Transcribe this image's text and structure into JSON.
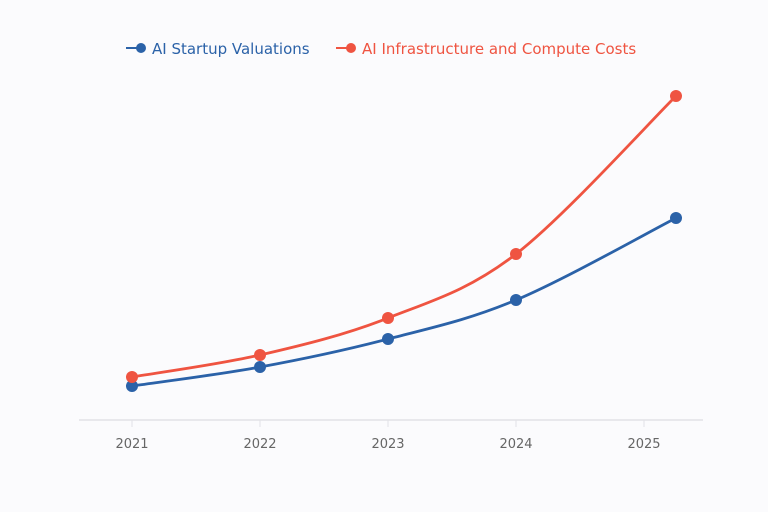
{
  "chart_data": {
    "type": "line",
    "title": "",
    "xlabel": "",
    "ylabel": "",
    "x_ticks": [
      "2021",
      "2022",
      "2023",
      "2024",
      "2025"
    ],
    "x": [
      2021,
      2022,
      2023,
      2024,
      2025.25
    ],
    "xlim": [
      2020.6,
      2025.55
    ],
    "ylim": [
      0,
      340
    ],
    "grid": false,
    "y_axis_labels_shown": false,
    "legend_position": "top-center",
    "series": [
      {
        "name": "AI Startup Valuations",
        "color": "#2b62a8",
        "values": [
          34,
          53,
          81,
          120,
          202
        ]
      },
      {
        "name": "AI Infrastructure and Compute Costs",
        "color": "#ef5441",
        "values": [
          43,
          65,
          102,
          166,
          324
        ]
      }
    ]
  }
}
